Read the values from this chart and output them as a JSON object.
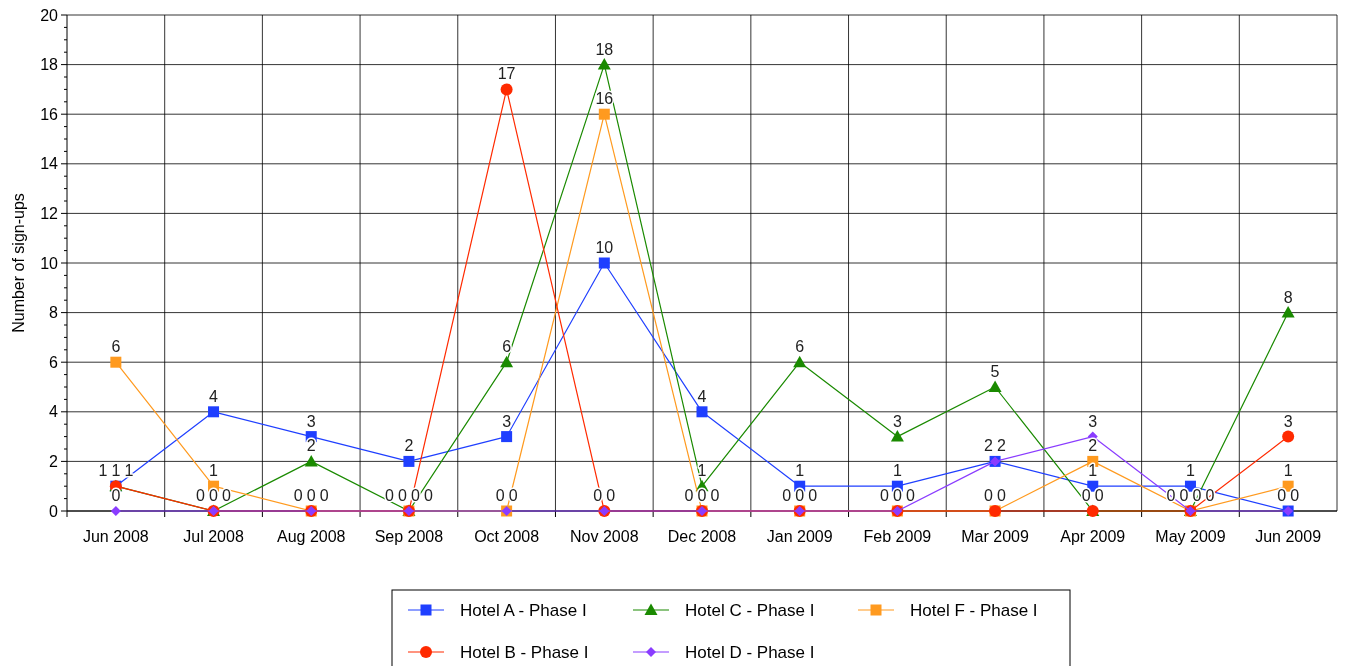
{
  "chart_data": {
    "type": "line",
    "ylabel": "Number of sign-ups",
    "categories": [
      "Jun 2008",
      "Jul 2008",
      "Aug 2008",
      "Sep 2008",
      "Oct 2008",
      "Nov 2008",
      "Dec 2008",
      "Jan 2009",
      "Feb 2009",
      "Mar 2009",
      "Apr 2009",
      "May 2009",
      "Jun 2009"
    ],
    "ylim": [
      0,
      20
    ],
    "yticks": [
      0,
      2,
      4,
      6,
      8,
      10,
      12,
      14,
      16,
      18,
      20
    ],
    "grid": true,
    "legend": "bottom",
    "data_labels": true,
    "series": [
      {
        "name": "Hotel A - Phase I",
        "color": "#1f3fff",
        "marker": "square",
        "values": [
          1,
          4,
          3,
          2,
          3,
          10,
          4,
          1,
          1,
          2,
          1,
          1,
          0
        ]
      },
      {
        "name": "Hotel C - Phase I",
        "color": "#1a8a00",
        "marker": "triangle",
        "values": [
          1,
          0,
          2,
          0,
          6,
          18,
          1,
          6,
          3,
          5,
          0,
          0,
          8
        ]
      },
      {
        "name": "Hotel F - Phase I",
        "color": "#ff9a1f",
        "marker": "square",
        "values": [
          6,
          1,
          0,
          0,
          0,
          16,
          0,
          0,
          0,
          0,
          2,
          0,
          1
        ]
      },
      {
        "name": "Hotel B - Phase I",
        "color": "#ff2a00",
        "marker": "circle",
        "values": [
          1,
          0,
          0,
          0,
          17,
          0,
          0,
          0,
          0,
          0,
          0,
          0,
          3
        ]
      },
      {
        "name": "Hotel D - Phase I",
        "color": "#8a3cff",
        "marker": "diamond",
        "values": [
          0,
          0,
          0,
          0,
          0,
          0,
          0,
          0,
          0,
          2,
          3,
          0,
          0
        ]
      }
    ]
  }
}
